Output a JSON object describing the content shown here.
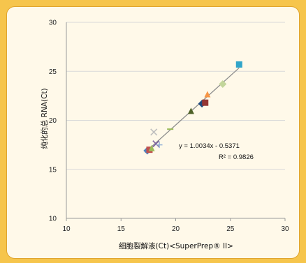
{
  "chart_data": {
    "type": "scatter",
    "title": "",
    "xlabel": "细胞裂解液(Ct)<SuperPrep® II>",
    "ylabel": "纯化的总 RNA(Ct)",
    "xlim": [
      10,
      30
    ],
    "ylim": [
      10,
      30
    ],
    "xticks": [
      "10",
      "15",
      "20",
      "25",
      "30"
    ],
    "yticks": [
      "10",
      "15",
      "20",
      "25",
      "30"
    ],
    "grid": "horizontal",
    "legend": "none",
    "trendline": {
      "slope": 1.0034,
      "intercept": -0.5371,
      "x_range": [
        17.2,
        25.8
      ],
      "color": "#8c8c8c"
    },
    "annotations": [
      "y = 1.0034x - 0.5371",
      "R² = 0.9826"
    ],
    "points": [
      {
        "x": 17.4,
        "y": 16.9,
        "marker": "diamond",
        "color": "#4f81bd"
      },
      {
        "x": 17.6,
        "y": 17.0,
        "marker": "square",
        "color": "#c0504d"
      },
      {
        "x": 17.8,
        "y": 17.1,
        "marker": "triangle",
        "color": "#9bbb59"
      },
      {
        "x": 18.2,
        "y": 17.6,
        "marker": "x",
        "color": "#8064a2"
      },
      {
        "x": 18.0,
        "y": 18.8,
        "marker": "x",
        "color": "#bfbfbf"
      },
      {
        "x": 18.5,
        "y": 17.5,
        "marker": "plus",
        "color": "#95b3d7"
      },
      {
        "x": 19.5,
        "y": 19.1,
        "marker": "dash",
        "color": "#9bbb59"
      },
      {
        "x": 21.4,
        "y": 20.9,
        "marker": "triangle",
        "color": "#4f6228"
      },
      {
        "x": 22.4,
        "y": 21.7,
        "marker": "diamond",
        "color": "#1f497d"
      },
      {
        "x": 22.7,
        "y": 21.8,
        "marker": "square",
        "color": "#943634"
      },
      {
        "x": 22.9,
        "y": 22.6,
        "marker": "triangle",
        "color": "#f79646"
      },
      {
        "x": 24.3,
        "y": 23.7,
        "marker": "diamond",
        "color": "#c3d69b"
      },
      {
        "x": 25.8,
        "y": 25.7,
        "marker": "square",
        "color": "#31a5c9"
      }
    ]
  }
}
